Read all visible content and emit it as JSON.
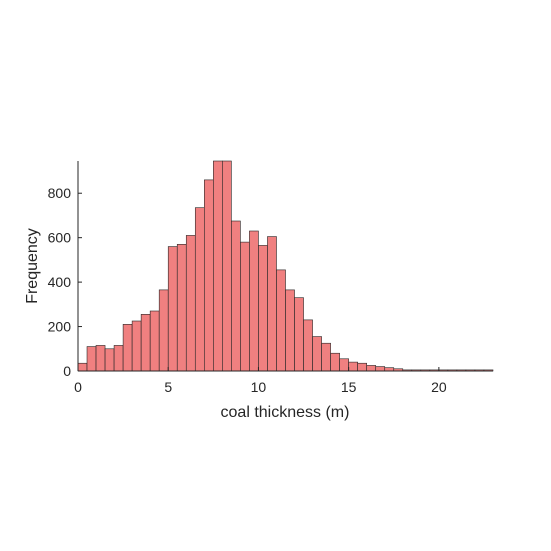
{
  "chart_data": {
    "type": "bar",
    "subtype": "histogram",
    "title": "",
    "xlabel": "coal thickness (m)",
    "ylabel": "Frequency",
    "bin_width": 0.5,
    "bin_start": 0,
    "values": [
      35,
      110,
      115,
      100,
      115,
      210,
      225,
      255,
      270,
      365,
      560,
      570,
      610,
      735,
      860,
      945,
      945,
      675,
      580,
      630,
      565,
      605,
      455,
      365,
      330,
      230,
      155,
      125,
      80,
      55,
      40,
      35,
      25,
      20,
      15,
      10,
      5,
      5,
      5,
      5,
      5,
      5,
      5,
      5,
      5,
      5
    ],
    "xlim": [
      0,
      23
    ],
    "ylim": [
      0,
      945
    ],
    "x_ticks": [
      "0",
      "5",
      "10",
      "15",
      "20"
    ],
    "y_ticks": [
      "0",
      "200",
      "400",
      "600",
      "800"
    ],
    "colors": {
      "bar_fill": "#f08080",
      "bar_edge": "#262626",
      "axis": "#262626"
    },
    "grid": false,
    "legend": "none"
  }
}
